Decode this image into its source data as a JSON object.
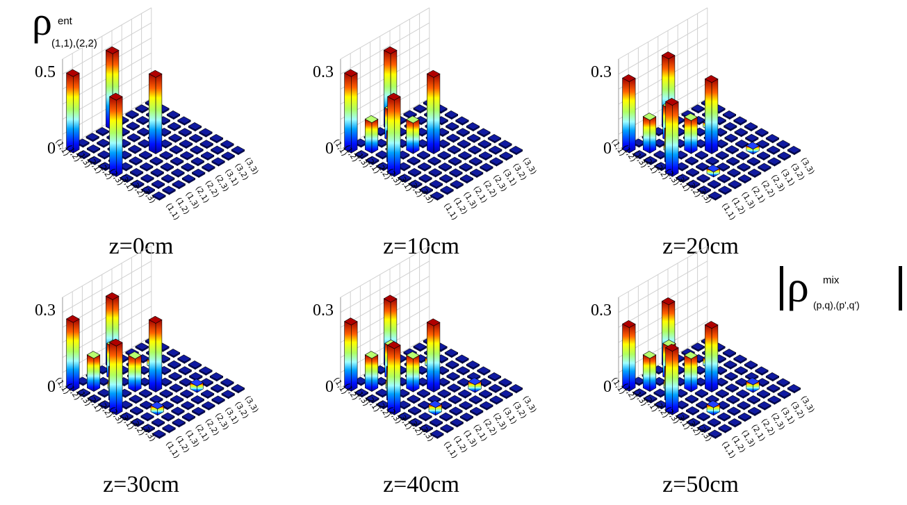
{
  "title_top_left": {
    "symbol": "ρ",
    "superscript": "ent",
    "subscript": "(1,1),(2,2)"
  },
  "title_bottom_right": {
    "symbol": "ρ",
    "superscript": "mix",
    "subscript": "(p,q),(p',q')"
  },
  "colors": {
    "cell_fill": "#000a8a",
    "cell_top": "#101aa0",
    "grid_line": "#d0d0d0",
    "edge": "#000000"
  },
  "chart_data": [
    {
      "type": "bar3d",
      "title": "z=0cm",
      "row_labels": [
        "(1,1)",
        "(1,2)",
        "(1,3)",
        "(2,1)",
        "(2,2)",
        "(2,3)",
        "(3,1)",
        "(3,2)",
        "(3,3)"
      ],
      "col_labels": [
        "(1,1)",
        "(1,2)",
        "(1,3)",
        "(2,1)",
        "(2,2)",
        "(2,3)",
        "(3,1)",
        "(3,2)",
        "(3,3)"
      ],
      "z_ticks": [
        "0",
        "0.5"
      ],
      "zlim": [
        0,
        0.5
      ],
      "bars": [
        {
          "row": 0,
          "col": 0,
          "value": 0.5
        },
        {
          "row": 0,
          "col": 4,
          "value": 0.5
        },
        {
          "row": 4,
          "col": 0,
          "value": 0.5
        },
        {
          "row": 4,
          "col": 4,
          "value": 0.5
        }
      ]
    },
    {
      "type": "bar3d",
      "title": "z=10cm",
      "row_labels": [
        "(1,1)",
        "(1,2)",
        "(1,3)",
        "(2,1)",
        "(2,2)",
        "(2,3)",
        "(3,1)",
        "(3,2)",
        "(3,3)"
      ],
      "col_labels": [
        "(1,1)",
        "(1,2)",
        "(1,3)",
        "(2,1)",
        "(2,2)",
        "(2,3)",
        "(3,1)",
        "(3,2)",
        "(3,3)"
      ],
      "z_ticks": [
        "0",
        "0.3"
      ],
      "zlim": [
        0,
        0.3
      ],
      "bars": [
        {
          "row": 0,
          "col": 0,
          "value": 0.3
        },
        {
          "row": 0,
          "col": 4,
          "value": 0.3
        },
        {
          "row": 4,
          "col": 0,
          "value": 0.3
        },
        {
          "row": 4,
          "col": 4,
          "value": 0.3
        },
        {
          "row": 1,
          "col": 1,
          "value": 0.12
        },
        {
          "row": 1,
          "col": 3,
          "value": 0.12
        },
        {
          "row": 3,
          "col": 1,
          "value": 0.12
        },
        {
          "row": 3,
          "col": 3,
          "value": 0.12
        }
      ]
    },
    {
      "type": "bar3d",
      "title": "z=20cm",
      "row_labels": [
        "(1,1)",
        "(1,2)",
        "(1,3)",
        "(2,1)",
        "(2,2)",
        "(2,3)",
        "(3,1)",
        "(3,2)",
        "(3,3)"
      ],
      "col_labels": [
        "(1,1)",
        "(1,2)",
        "(1,3)",
        "(2,1)",
        "(2,2)",
        "(2,3)",
        "(3,1)",
        "(3,2)",
        "(3,3)"
      ],
      "z_ticks": [
        "0",
        "0.3"
      ],
      "zlim": [
        0,
        0.3
      ],
      "bars": [
        {
          "row": 0,
          "col": 0,
          "value": 0.28
        },
        {
          "row": 0,
          "col": 4,
          "value": 0.28
        },
        {
          "row": 4,
          "col": 0,
          "value": 0.28
        },
        {
          "row": 4,
          "col": 4,
          "value": 0.28
        },
        {
          "row": 1,
          "col": 1,
          "value": 0.13
        },
        {
          "row": 1,
          "col": 3,
          "value": 0.13
        },
        {
          "row": 3,
          "col": 1,
          "value": 0.13
        },
        {
          "row": 3,
          "col": 3,
          "value": 0.13
        },
        {
          "row": 2,
          "col": 2,
          "value": 0.02
        },
        {
          "row": 2,
          "col": 6,
          "value": 0.02
        },
        {
          "row": 6,
          "col": 2,
          "value": 0.02
        },
        {
          "row": 6,
          "col": 6,
          "value": 0.02
        }
      ]
    },
    {
      "type": "bar3d",
      "title": "z=30cm",
      "row_labels": [
        "(1,1)",
        "(1,2)",
        "(1,3)",
        "(2,1)",
        "(2,2)",
        "(2,3)",
        "(3,1)",
        "(3,2)",
        "(3,3)"
      ],
      "col_labels": [
        "(1,1)",
        "(1,2)",
        "(1,3)",
        "(2,1)",
        "(2,2)",
        "(2,3)",
        "(3,1)",
        "(3,2)",
        "(3,3)"
      ],
      "z_ticks": [
        "0",
        "0.3"
      ],
      "zlim": [
        0,
        0.3
      ],
      "bars": [
        {
          "row": 0,
          "col": 0,
          "value": 0.27
        },
        {
          "row": 0,
          "col": 4,
          "value": 0.27
        },
        {
          "row": 4,
          "col": 0,
          "value": 0.27
        },
        {
          "row": 4,
          "col": 4,
          "value": 0.27
        },
        {
          "row": 1,
          "col": 1,
          "value": 0.13
        },
        {
          "row": 1,
          "col": 3,
          "value": 0.13
        },
        {
          "row": 3,
          "col": 1,
          "value": 0.13
        },
        {
          "row": 3,
          "col": 3,
          "value": 0.13
        },
        {
          "row": 2,
          "col": 2,
          "value": 0.025
        },
        {
          "row": 2,
          "col": 6,
          "value": 0.025
        },
        {
          "row": 6,
          "col": 2,
          "value": 0.025
        },
        {
          "row": 6,
          "col": 6,
          "value": 0.025
        }
      ]
    },
    {
      "type": "bar3d",
      "title": "z=40cm",
      "row_labels": [
        "(1,1)",
        "(1,2)",
        "(1,3)",
        "(2,1)",
        "(2,2)",
        "(2,3)",
        "(3,1)",
        "(3,2)",
        "(3,3)"
      ],
      "col_labels": [
        "(1,1)",
        "(1,2)",
        "(1,3)",
        "(2,1)",
        "(2,2)",
        "(2,3)",
        "(3,1)",
        "(3,2)",
        "(3,3)"
      ],
      "z_ticks": [
        "0",
        "0.3"
      ],
      "zlim": [
        0,
        0.3
      ],
      "bars": [
        {
          "row": 0,
          "col": 0,
          "value": 0.26
        },
        {
          "row": 0,
          "col": 4,
          "value": 0.26
        },
        {
          "row": 4,
          "col": 0,
          "value": 0.26
        },
        {
          "row": 4,
          "col": 4,
          "value": 0.26
        },
        {
          "row": 1,
          "col": 1,
          "value": 0.13
        },
        {
          "row": 1,
          "col": 3,
          "value": 0.13
        },
        {
          "row": 3,
          "col": 1,
          "value": 0.13
        },
        {
          "row": 3,
          "col": 3,
          "value": 0.13
        },
        {
          "row": 2,
          "col": 2,
          "value": 0.03
        },
        {
          "row": 2,
          "col": 6,
          "value": 0.03
        },
        {
          "row": 6,
          "col": 2,
          "value": 0.03
        },
        {
          "row": 6,
          "col": 6,
          "value": 0.03
        }
      ]
    },
    {
      "type": "bar3d",
      "title": "z=50cm",
      "row_labels": [
        "(1,1)",
        "(1,2)",
        "(1,3)",
        "(2,1)",
        "(2,2)",
        "(2,3)",
        "(3,1)",
        "(3,2)",
        "(3,3)"
      ],
      "col_labels": [
        "(1,1)",
        "(1,2)",
        "(1,3)",
        "(2,1)",
        "(2,2)",
        "(2,3)",
        "(3,1)",
        "(3,2)",
        "(3,3)"
      ],
      "z_ticks": [
        "0",
        "0.3"
      ],
      "zlim": [
        0,
        0.3
      ],
      "bars": [
        {
          "row": 0,
          "col": 0,
          "value": 0.25
        },
        {
          "row": 0,
          "col": 4,
          "value": 0.25
        },
        {
          "row": 4,
          "col": 0,
          "value": 0.25
        },
        {
          "row": 4,
          "col": 4,
          "value": 0.25
        },
        {
          "row": 1,
          "col": 1,
          "value": 0.13
        },
        {
          "row": 1,
          "col": 3,
          "value": 0.13
        },
        {
          "row": 3,
          "col": 1,
          "value": 0.13
        },
        {
          "row": 3,
          "col": 3,
          "value": 0.13
        },
        {
          "row": 2,
          "col": 2,
          "value": 0.03
        },
        {
          "row": 2,
          "col": 6,
          "value": 0.03
        },
        {
          "row": 6,
          "col": 2,
          "value": 0.03
        },
        {
          "row": 6,
          "col": 6,
          "value": 0.03
        }
      ]
    }
  ]
}
